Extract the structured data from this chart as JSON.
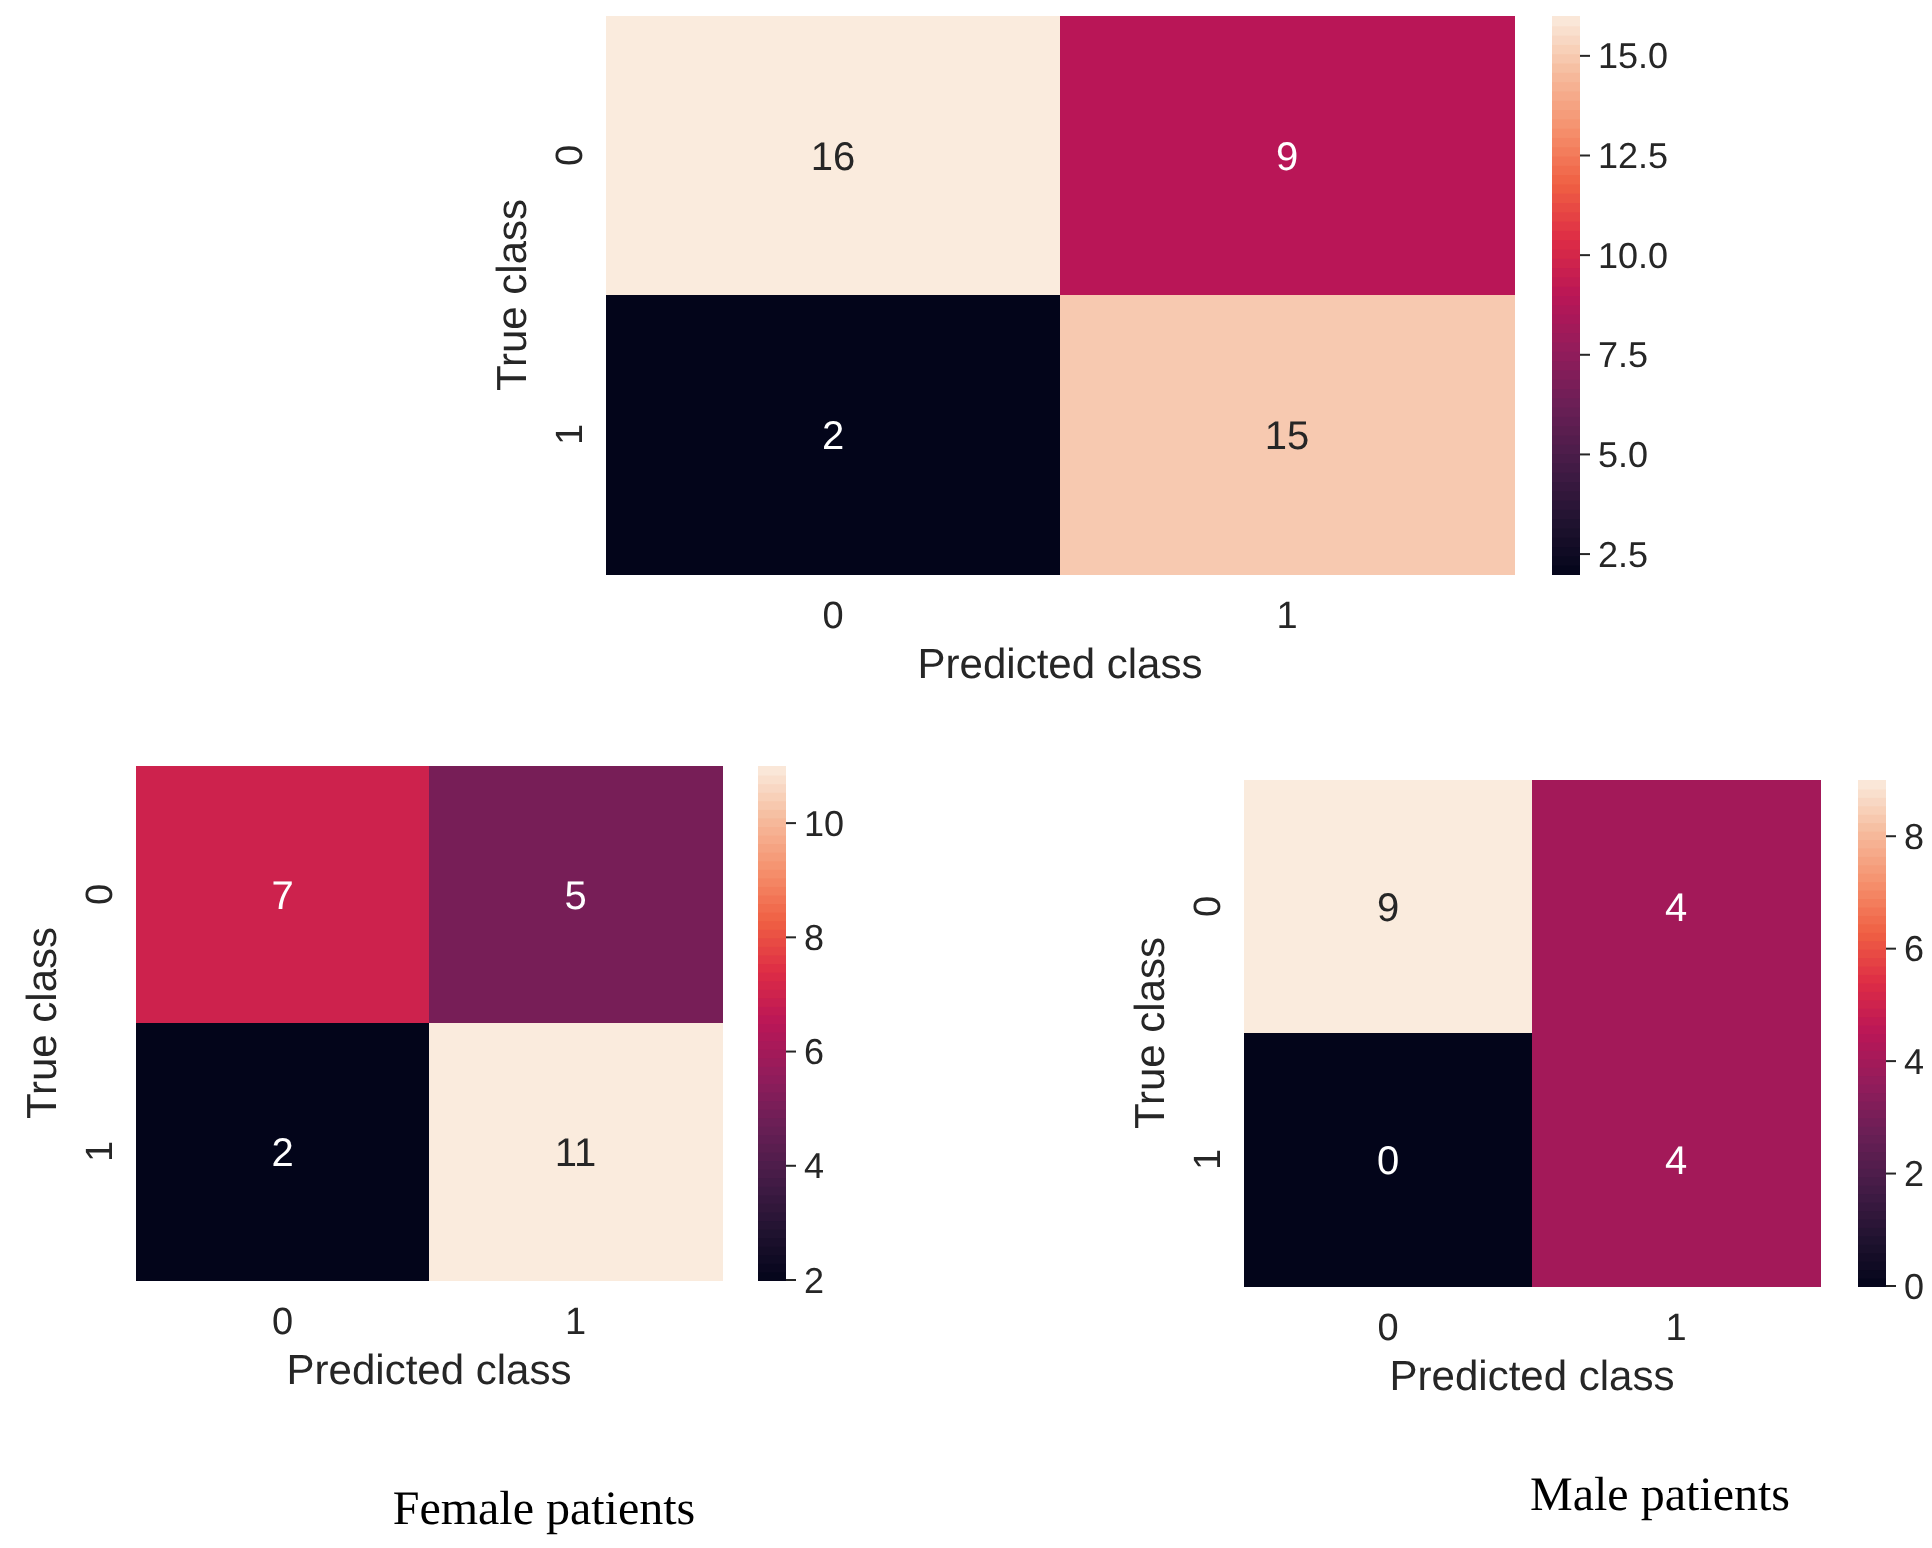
{
  "chart_data": [
    {
      "type": "heatmap",
      "xlabel": "Predicted class",
      "ylabel": "True class",
      "categories": [
        "0",
        "1"
      ],
      "y_categories": [
        "0",
        "1"
      ],
      "cells": [
        [
          16,
          9
        ],
        [
          2,
          15
        ]
      ],
      "clim": [
        2,
        16
      ],
      "cticks": [
        {
          "value": 2.5,
          "label": "2.5"
        },
        {
          "value": 5,
          "label": "5.0"
        },
        {
          "value": 7.5,
          "label": "7.5"
        },
        {
          "value": 10,
          "label": "10.0"
        },
        {
          "value": 12.5,
          "label": "12.5"
        },
        {
          "value": 15,
          "label": "15.0"
        }
      ],
      "data_labels": true
    },
    {
      "type": "heatmap",
      "xlabel": "Predicted class",
      "ylabel": "True class",
      "categories": [
        "0",
        "1"
      ],
      "y_categories": [
        "0",
        "1"
      ],
      "cells": [
        [
          7,
          5
        ],
        [
          2,
          11
        ]
      ],
      "clim": [
        2,
        11
      ],
      "cticks": [
        2,
        4,
        6,
        8,
        10
      ],
      "data_labels": true,
      "annotations": [
        "Female patients"
      ]
    },
    {
      "type": "heatmap",
      "xlabel": "Predicted class",
      "ylabel": "True class",
      "categories": [
        "0",
        "1"
      ],
      "y_categories": [
        "0",
        "1"
      ],
      "cells": [
        [
          9,
          4
        ],
        [
          0,
          4
        ]
      ],
      "clim": [
        0,
        9
      ],
      "cticks": [
        0,
        2,
        4,
        6,
        8
      ],
      "data_labels": true,
      "annotations": [
        "Male patients"
      ]
    }
  ]
}
